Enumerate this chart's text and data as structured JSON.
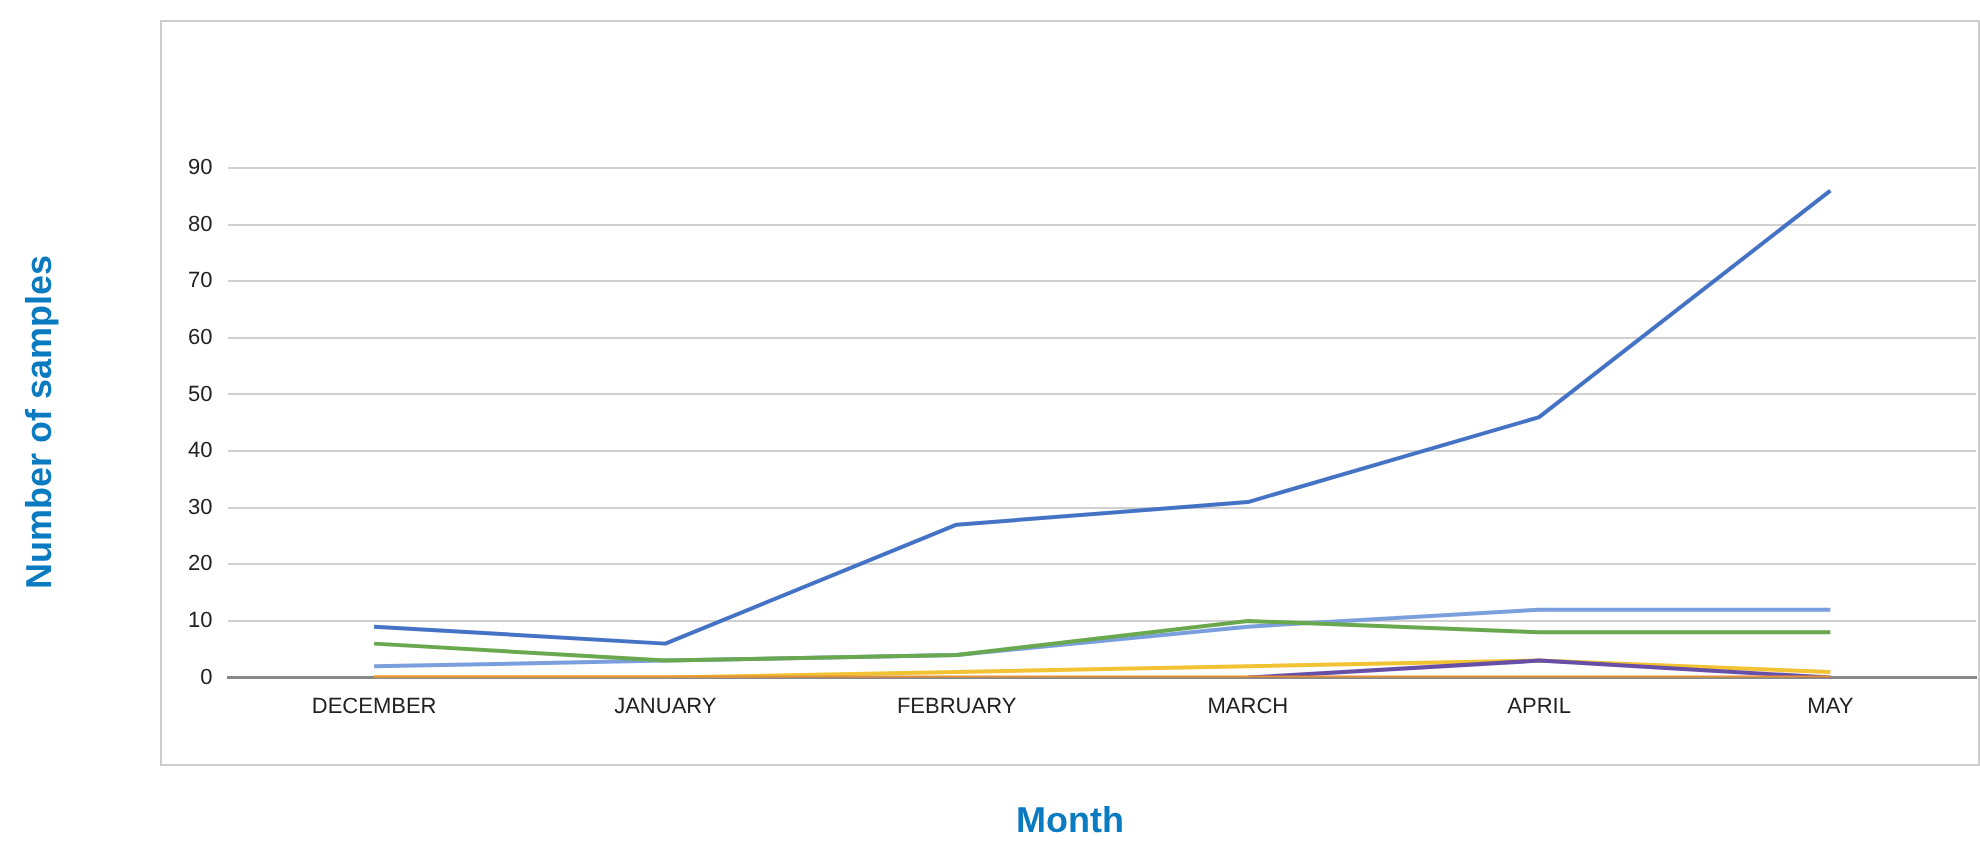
{
  "chart_data": {
    "type": "line",
    "xlabel": "Month",
    "ylabel": "Number of samples",
    "categories": [
      "DECEMBER",
      "JANUARY",
      "FEBRUARY",
      "MARCH",
      "APRIL",
      "MAY"
    ],
    "series": [
      {
        "color": "#4472c4",
        "values": [
          9,
          6,
          27,
          31,
          46,
          86
        ]
      },
      {
        "color": "#6aa84f",
        "values": [
          6,
          3,
          4,
          10,
          8,
          8
        ]
      },
      {
        "color": "#7b9fdc",
        "values": [
          2,
          3,
          4,
          9,
          12,
          12
        ]
      },
      {
        "color": "#e69138",
        "values": [
          0,
          0,
          0,
          0,
          0,
          0
        ]
      },
      {
        "color": "#674ea7",
        "values": [
          null,
          null,
          null,
          0,
          3,
          0
        ]
      },
      {
        "color": "#f1c232",
        "values": [
          0,
          0,
          1,
          2,
          3,
          1
        ]
      }
    ],
    "ylim": [
      0,
      90
    ],
    "yticks": [
      0,
      10,
      20,
      30,
      40,
      50,
      60,
      70,
      80,
      90
    ],
    "grid": "y",
    "legend": false,
    "marker": "none",
    "line_style": "solid"
  }
}
